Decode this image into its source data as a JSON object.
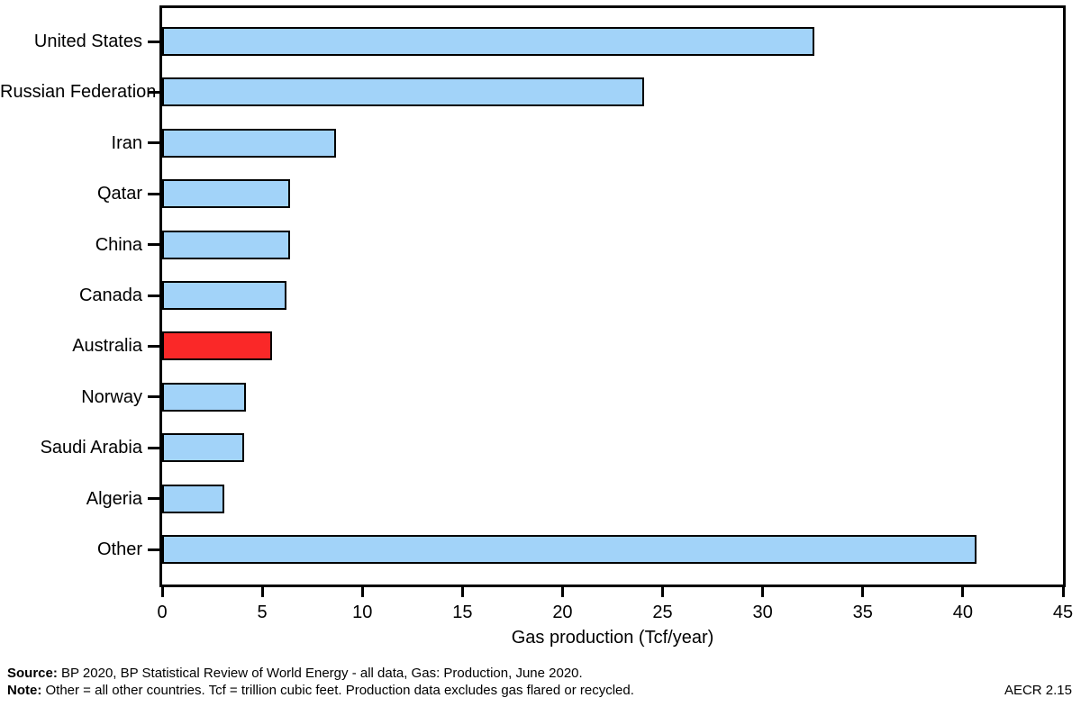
{
  "chart_data": {
    "type": "bar",
    "orientation": "horizontal",
    "title": "",
    "xlabel": "Gas production (Tcf/year)",
    "ylabel": "",
    "categories": [
      "United States",
      "Russian Federation",
      "Iran",
      "Qatar",
      "China",
      "Canada",
      "Australia",
      "Norway",
      "Saudi Arabia",
      "Algeria",
      "Other"
    ],
    "values": [
      32.5,
      24.0,
      8.6,
      6.3,
      6.3,
      6.1,
      5.4,
      4.1,
      4.0,
      3.0,
      40.6
    ],
    "highlight_category": "Australia",
    "bar_color": "#a2d3f9",
    "highlight_color": "#fa2828",
    "bar_border_color": "#000000",
    "xlim": [
      0,
      45
    ],
    "x_ticks": [
      0,
      5,
      10,
      15,
      20,
      25,
      30,
      35,
      40,
      45
    ],
    "grid": false,
    "legend": false
  },
  "footer": {
    "source_label": "Source:",
    "source_text": " BP 2020, BP Statistical Review of World Energy - all data, Gas: Production, June 2020.",
    "note_label": "Note:",
    "note_text": " Other = all other countries. Tcf = trillion cubic feet. Production data excludes gas flared or recycled.",
    "figure_ref": "AECR 2.15"
  }
}
